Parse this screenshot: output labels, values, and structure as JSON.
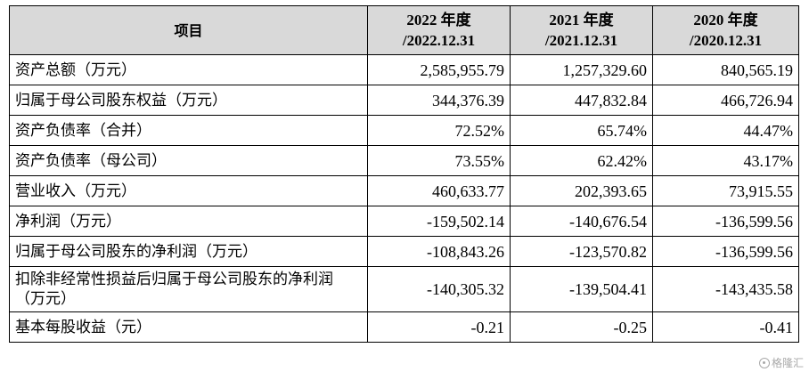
{
  "table": {
    "headers": [
      {
        "line1": "项目",
        "line2": ""
      },
      {
        "line1": "2022 年度",
        "line2": "/2022.12.31"
      },
      {
        "line1": "2021 年度",
        "line2": "/2021.12.31"
      },
      {
        "line1": "2020 年度",
        "line2": "/2020.12.31"
      }
    ],
    "rows": [
      {
        "label": "资产总额（万元）",
        "values": [
          "2,585,955.79",
          "1,257,329.60",
          "840,565.19"
        ]
      },
      {
        "label": "归属于母公司股东权益（万元）",
        "values": [
          "344,376.39",
          "447,832.84",
          "466,726.94"
        ]
      },
      {
        "label": "资产负债率（合并）",
        "values": [
          "72.52%",
          "65.74%",
          "44.47%"
        ]
      },
      {
        "label": "资产负债率（母公司）",
        "values": [
          "73.55%",
          "62.42%",
          "43.17%"
        ]
      },
      {
        "label": "营业收入（万元）",
        "values": [
          "460,633.77",
          "202,393.65",
          "73,915.55"
        ]
      },
      {
        "label": "净利润（万元）",
        "values": [
          "-159,502.14",
          "-140,676.54",
          "-136,599.56"
        ]
      },
      {
        "label": "归属于母公司股东的净利润（万元）",
        "values": [
          "-108,843.26",
          "-123,570.82",
          "-136,599.56"
        ]
      },
      {
        "label": "扣除非经常性损益后归属于母公司股东的净利润（万元）",
        "values": [
          "-140,305.32",
          "-139,504.41",
          "-143,435.58"
        ]
      },
      {
        "label": "基本每股收益（元）",
        "values": [
          "-0.21",
          "-0.25",
          "-0.41"
        ]
      }
    ]
  },
  "watermark": {
    "text": "格隆汇",
    "color": "#9a9a9a"
  }
}
